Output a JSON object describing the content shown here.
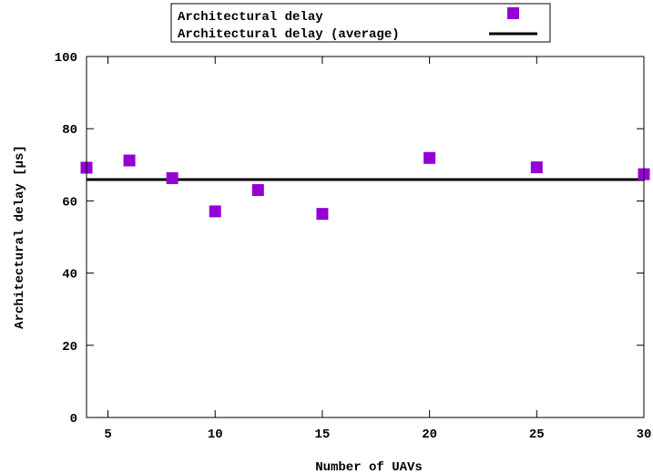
{
  "chart_data": {
    "type": "scatter",
    "title": "",
    "xlabel": "Number of UAVs",
    "ylabel": "Architectural delay [µs]",
    "xlim": [
      4,
      30
    ],
    "ylim": [
      0,
      100
    ],
    "xticks": [
      5,
      10,
      15,
      20,
      25,
      30
    ],
    "yticks": [
      0,
      20,
      40,
      60,
      80,
      100
    ],
    "grid": false,
    "legend_position": "top-center",
    "series": [
      {
        "name": "Architectural delay",
        "type": "scatter",
        "color": "#9400d3",
        "marker": "square",
        "x": [
          4,
          6,
          8,
          10,
          12,
          15,
          20,
          25,
          30
        ],
        "y": [
          69.2,
          71.2,
          66.3,
          57.1,
          63.0,
          56.4,
          71.9,
          69.3,
          67.4
        ]
      },
      {
        "name": "Architectural delay (average)",
        "type": "line",
        "color": "#000000",
        "y": 65.9
      }
    ]
  }
}
